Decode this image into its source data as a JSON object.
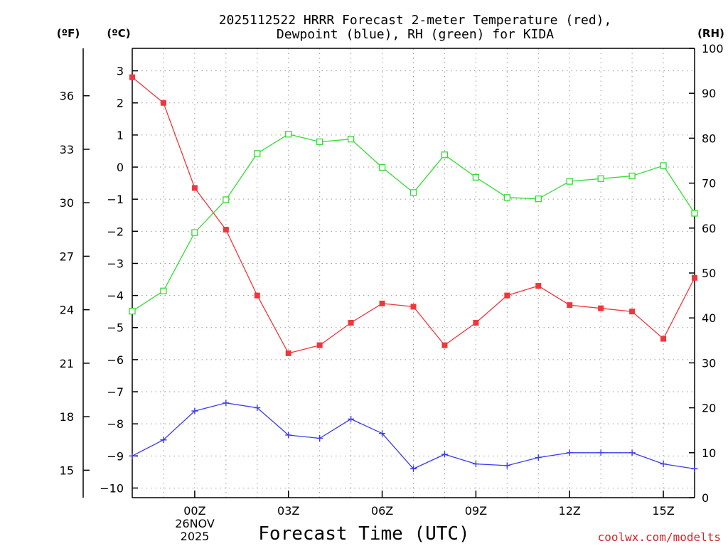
{
  "chart_data": {
    "type": "line",
    "title": "2025112522 HRRR Forecast 2-meter Temperature (red),",
    "title_line2": "Dewpoint (blue), RH (green) for KIDA",
    "xlabel": "Forecast Time (UTC)",
    "credit": "coolwx.com/modelts",
    "units": {
      "fahrenheit": "(ºF)",
      "celsius": "(ºC)",
      "rh": "(RH)"
    },
    "x": [
      22,
      23,
      24,
      25,
      26,
      27,
      28,
      29,
      30,
      31,
      32,
      33,
      34,
      35,
      36,
      37,
      38,
      39,
      40
    ],
    "xlim": [
      22,
      40
    ],
    "x_ticks": [
      {
        "x": 24,
        "label": "00Z"
      },
      {
        "x": 27,
        "label": "03Z"
      },
      {
        "x": 30,
        "label": "06Z"
      },
      {
        "x": 33,
        "label": "09Z"
      },
      {
        "x": 36,
        "label": "12Z"
      },
      {
        "x": 39,
        "label": "15Z"
      }
    ],
    "date_label": {
      "x": 24,
      "line1": "26NOV",
      "line2": "2025"
    },
    "y_celsius": {
      "range": [
        -10.3,
        3.7
      ],
      "ticks": [
        3,
        2,
        1,
        0,
        -1,
        -2,
        -3,
        -4,
        -5,
        -6,
        -7,
        -8,
        -9,
        -10
      ]
    },
    "y_fahrenheit": {
      "ticks": [
        36,
        33,
        30,
        27,
        24,
        21,
        18,
        15
      ]
    },
    "y_rh": {
      "range": [
        0,
        100
      ],
      "ticks": [
        100,
        90,
        80,
        70,
        60,
        50,
        40,
        30,
        20,
        10,
        0
      ]
    },
    "series": [
      {
        "name": "2-meter Temperature",
        "axis": "celsius",
        "color": "#f0363c",
        "marker": "filled-square",
        "values": [
          2.8,
          2.0,
          -0.65,
          -1.95,
          -4.0,
          -5.8,
          -5.55,
          -4.85,
          -4.25,
          -4.35,
          -5.55,
          -4.85,
          -4.0,
          -3.7,
          -4.3,
          -4.4,
          -4.5,
          -5.35,
          -3.45
        ]
      },
      {
        "name": "Dewpoint",
        "axis": "celsius",
        "color": "#3b3bf0",
        "marker": "plus",
        "values": [
          -9.0,
          -8.5,
          -7.6,
          -7.35,
          -7.5,
          -8.35,
          -8.45,
          -7.85,
          -8.3,
          -9.4,
          -8.95,
          -9.25,
          -9.3,
          -9.05,
          -8.9,
          -8.9,
          -8.9,
          -9.25,
          -9.4
        ]
      },
      {
        "name": "RH",
        "axis": "rh",
        "color": "#32dc32",
        "marker": "open-square",
        "values": [
          41.5,
          46,
          59,
          66.3,
          76.6,
          80.9,
          79.2,
          79.8,
          73.5,
          67.9,
          76.3,
          71.3,
          66.8,
          66.5,
          70.4,
          71,
          71.6,
          73.9,
          63.3
        ]
      }
    ]
  }
}
